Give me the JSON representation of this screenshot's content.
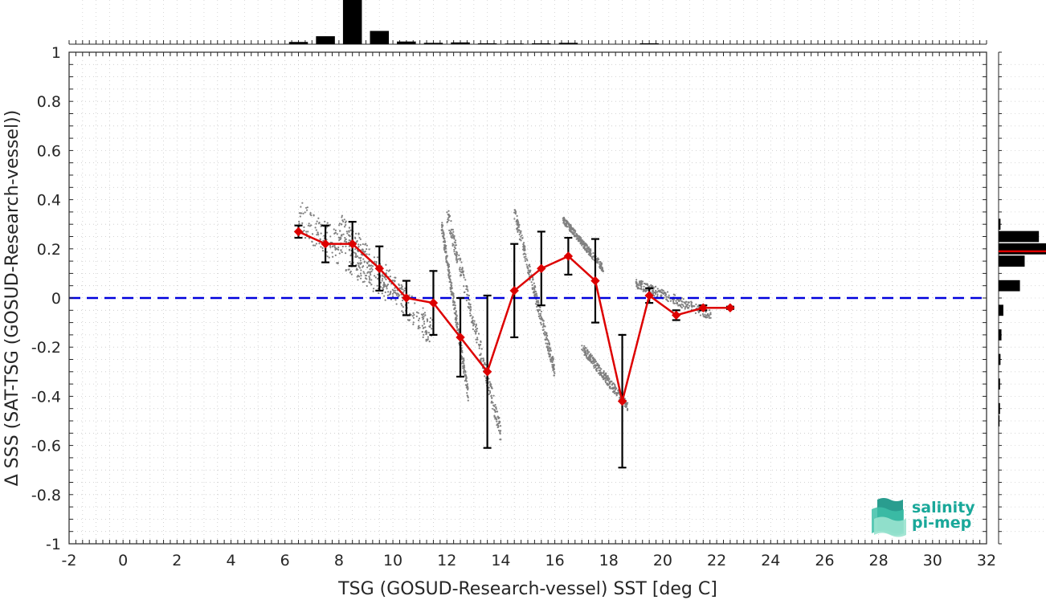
{
  "chart_data": {
    "type": "scatter",
    "xlabel": "TSG (GOSUD-Research-vessel) SST [deg C]",
    "ylabel": "Δ SSS (SAT-TSG (GOSUD-Research-vessel))",
    "xlim": [
      -2,
      32
    ],
    "ylim": [
      -1,
      1
    ],
    "x_ticks": [
      "-2",
      "0",
      "2",
      "4",
      "6",
      "8",
      "10",
      "12",
      "14",
      "16",
      "18",
      "20",
      "22",
      "24",
      "26",
      "28",
      "30",
      "32"
    ],
    "y_ticks": [
      "1",
      "0.8",
      "0.6",
      "0.4",
      "0.2",
      "0",
      "-0.2",
      "-0.4",
      "-0.6",
      "-0.8",
      "-1"
    ],
    "grid": true,
    "zero_line": {
      "y": 0,
      "color": "#0000dd",
      "style": "dashed"
    },
    "binned_mean": {
      "color": "#dd0000",
      "x": [
        6.5,
        7.5,
        8.5,
        9.5,
        10.5,
        11.5,
        12.5,
        13.5,
        14.5,
        15.5,
        16.5,
        17.5,
        18.5,
        19.5,
        20.5,
        21.5,
        22.5
      ],
      "y": [
        0.27,
        0.22,
        0.22,
        0.12,
        0.0,
        -0.02,
        -0.16,
        -0.3,
        0.03,
        0.12,
        0.17,
        0.07,
        -0.42,
        0.01,
        -0.07,
        -0.04,
        -0.04
      ],
      "err": [
        0.025,
        0.075,
        0.09,
        0.09,
        0.07,
        0.13,
        0.16,
        0.31,
        0.19,
        0.15,
        0.075,
        0.17,
        0.27,
        0.03,
        0.02,
        0.01,
        0.005
      ]
    },
    "scatter_color": "#808080",
    "scatter_clusters": [
      {
        "x": [
          6.5,
          9.8
        ],
        "y0": 0.33,
        "y1": 0.05,
        "spread": 0.07
      },
      {
        "x": [
          8.0,
          11.5
        ],
        "y0": 0.3,
        "y1": -0.15,
        "spread": 0.06
      },
      {
        "x": [
          12.0,
          14.0
        ],
        "y0": 0.35,
        "y1": -0.55,
        "spread": 0.04
      },
      {
        "x": [
          11.8,
          12.8
        ],
        "y0": 0.3,
        "y1": -0.4,
        "spread": 0.03
      },
      {
        "x": [
          14.5,
          16.0
        ],
        "y0": 0.35,
        "y1": -0.3,
        "spread": 0.03
      },
      {
        "x": [
          16.3,
          17.8
        ],
        "y0": 0.32,
        "y1": 0.12,
        "spread": 0.015
      },
      {
        "x": [
          17.0,
          18.7
        ],
        "y0": -0.2,
        "y1": -0.44,
        "spread": 0.02
      },
      {
        "x": [
          19.0,
          21.8
        ],
        "y0": 0.06,
        "y1": -0.07,
        "spread": 0.02
      }
    ],
    "top_histogram": {
      "bin_centers": [
        6.5,
        7.5,
        8.5,
        9.5,
        10.5,
        11.5,
        12.5,
        13.5,
        14.5,
        15.5,
        16.5,
        17.5,
        18.5,
        19.5
      ],
      "relative_counts": [
        0.05,
        0.18,
        1.0,
        0.3,
        0.06,
        0.03,
        0.04,
        0.02,
        0.015,
        0.02,
        0.03,
        0.0,
        0.0,
        0.02
      ]
    },
    "right_histogram": {
      "bin_centers": [
        0.35,
        0.3,
        0.25,
        0.2,
        0.15,
        0.1,
        0.05,
        0.0,
        -0.05,
        -0.1,
        -0.15,
        -0.2,
        -0.25,
        -0.3,
        -0.35,
        -0.4,
        -0.45,
        -0.5
      ],
      "relative_counts": [
        0.0,
        0.04,
        0.85,
        1.0,
        0.55,
        0.0,
        0.45,
        0.0,
        0.1,
        0.0,
        0.06,
        0.0,
        0.04,
        0.0,
        0.03,
        0.0,
        0.03,
        0.02
      ],
      "median_line": {
        "y": 0.19,
        "color": "#dd0000"
      }
    }
  },
  "logo": {
    "line1": "salinity",
    "line2": "pi-mep"
  }
}
